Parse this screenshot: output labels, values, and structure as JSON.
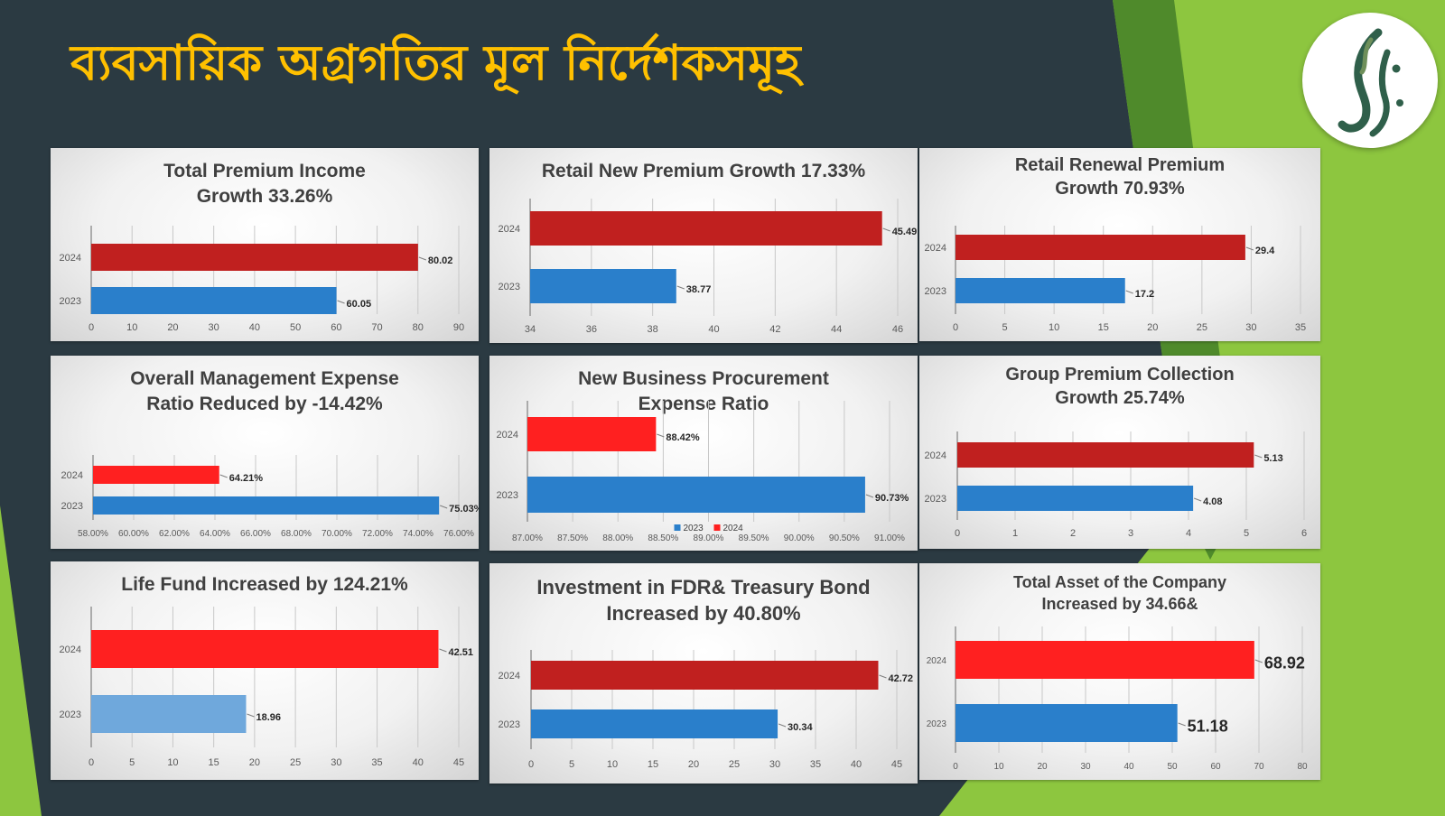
{
  "slide": {
    "title": "ব্যবসায়িক অগ্রগতির মূল নির্দেশকসমূহ"
  },
  "colors": {
    "background": "#2b3a42",
    "accent_green": "#8dc63f",
    "title": "#ffc000",
    "bar_2024": "#c0201f",
    "bar_2024_bright": "#ff2020",
    "bar_2023": "#2a7fcb",
    "bar_2023_light": "#6fa8dc"
  },
  "logo": {
    "icon": "calligraphy-logo-icon"
  },
  "chart_data": [
    {
      "type": "bar",
      "orientation": "horizontal",
      "title": "Total Premium Income\nGrowth 33.26%",
      "categories": [
        "2024",
        "2023"
      ],
      "values": [
        80.02,
        60.05
      ],
      "labels": [
        "80.02",
        "60.05"
      ],
      "xlim": [
        0,
        90
      ],
      "ticks": [
        0,
        10,
        20,
        30,
        40,
        50,
        60,
        70,
        80,
        90
      ],
      "tick_labels": [
        "0",
        "10",
        "20",
        "30",
        "40",
        "50",
        "60",
        "70",
        "80",
        "90"
      ],
      "grid": true,
      "colors": [
        "#c0201f",
        "#2a7fcb"
      ]
    },
    {
      "type": "bar",
      "orientation": "horizontal",
      "title": "Retail New Premium Growth 17.33%",
      "categories": [
        "2024",
        "2023"
      ],
      "values": [
        45.49,
        38.77
      ],
      "labels": [
        "45.49",
        "38.77"
      ],
      "xlim": [
        34,
        46
      ],
      "ticks": [
        34,
        36,
        38,
        40,
        42,
        44,
        46
      ],
      "tick_labels": [
        "34",
        "36",
        "38",
        "40",
        "42",
        "44",
        "46"
      ],
      "grid": true,
      "colors": [
        "#c0201f",
        "#2a7fcb"
      ]
    },
    {
      "type": "bar",
      "orientation": "horizontal",
      "title": "Retail Renewal Premium\nGrowth 70.93%",
      "categories": [
        "2024",
        "2023"
      ],
      "values": [
        29.4,
        17.2
      ],
      "labels": [
        "29.4",
        "17.2"
      ],
      "xlim": [
        0,
        35
      ],
      "ticks": [
        0,
        5,
        10,
        15,
        20,
        25,
        30,
        35
      ],
      "tick_labels": [
        "0",
        "5",
        "10",
        "15",
        "20",
        "25",
        "30",
        "35"
      ],
      "grid": true,
      "colors": [
        "#c0201f",
        "#2a7fcb"
      ]
    },
    {
      "type": "bar",
      "orientation": "horizontal",
      "title": "Overall Management Expense\nRatio Reduced by -14.42%",
      "categories": [
        "2024",
        "2023"
      ],
      "values": [
        64.21,
        75.03
      ],
      "labels": [
        "64.21%",
        "75.03%"
      ],
      "xlim": [
        58,
        76
      ],
      "ticks": [
        58,
        60,
        62,
        64,
        66,
        68,
        70,
        72,
        74,
        76
      ],
      "tick_labels": [
        "58.00%",
        "60.00%",
        "62.00%",
        "64.00%",
        "66.00%",
        "68.00%",
        "70.00%",
        "72.00%",
        "74.00%",
        "76.00%"
      ],
      "grid": true,
      "colors": [
        "#ff2020",
        "#2a7fcb"
      ]
    },
    {
      "type": "bar",
      "orientation": "horizontal",
      "title": "New Business Procurement\nExpense Ratio",
      "categories": [
        "2024",
        "2023"
      ],
      "values": [
        88.42,
        90.73
      ],
      "labels": [
        "88.42%",
        "90.73%"
      ],
      "xlim": [
        87,
        91
      ],
      "ticks": [
        87,
        87.5,
        88,
        88.5,
        89,
        89.5,
        90,
        90.5,
        91
      ],
      "tick_labels": [
        "87.00%",
        "87.50%",
        "88.00%",
        "88.50%",
        "89.00%",
        "89.50%",
        "90.00%",
        "90.50%",
        "91.00%"
      ],
      "grid": true,
      "colors": [
        "#ff2020",
        "#2a7fcb"
      ],
      "legend": {
        "position": "bottom",
        "entries": [
          {
            "name": "2023",
            "color": "#2a7fcb"
          },
          {
            "name": "2024",
            "color": "#ff2020"
          }
        ]
      }
    },
    {
      "type": "bar",
      "orientation": "horizontal",
      "title": "Group Premium Collection\nGrowth 25.74%",
      "categories": [
        "2024",
        "2023"
      ],
      "values": [
        5.13,
        4.08
      ],
      "labels": [
        "5.13",
        "4.08"
      ],
      "xlim": [
        0,
        6
      ],
      "ticks": [
        0,
        1,
        2,
        3,
        4,
        5,
        6
      ],
      "tick_labels": [
        "0",
        "1",
        "2",
        "3",
        "4",
        "5",
        "6"
      ],
      "grid": true,
      "colors": [
        "#c0201f",
        "#2a7fcb"
      ]
    },
    {
      "type": "bar",
      "orientation": "horizontal",
      "title": "Life Fund Increased by 124.21%",
      "categories": [
        "2024",
        "2023"
      ],
      "values": [
        42.51,
        18.96
      ],
      "labels": [
        "42.51",
        "18.96"
      ],
      "xlim": [
        0,
        45
      ],
      "ticks": [
        0,
        5,
        10,
        15,
        20,
        25,
        30,
        35,
        40,
        45
      ],
      "tick_labels": [
        "0",
        "5",
        "10",
        "15",
        "20",
        "25",
        "30",
        "35",
        "40",
        "45"
      ],
      "grid": true,
      "colors": [
        "#ff2020",
        "#6fa8dc"
      ]
    },
    {
      "type": "bar",
      "orientation": "horizontal",
      "title": "Investment in FDR& Treasury Bond\nIncreased by 40.80%",
      "categories": [
        "2024",
        "2023"
      ],
      "values": [
        42.72,
        30.34
      ],
      "labels": [
        "42.72",
        "30.34"
      ],
      "xlim": [
        0,
        45
      ],
      "ticks": [
        0,
        5,
        10,
        15,
        20,
        25,
        30,
        35,
        40,
        45
      ],
      "tick_labels": [
        "0",
        "5",
        "10",
        "15",
        "20",
        "25",
        "30",
        "35",
        "40",
        "45"
      ],
      "grid": true,
      "colors": [
        "#c0201f",
        "#2a7fcb"
      ]
    },
    {
      "type": "bar",
      "orientation": "horizontal",
      "title": "Total Asset of the Company\nIncreased by 34.66&",
      "categories": [
        "2024",
        "2023"
      ],
      "values": [
        68.92,
        51.18
      ],
      "labels": [
        "68.92",
        "51.18"
      ],
      "xlim": [
        0,
        80
      ],
      "ticks": [
        0,
        10,
        20,
        30,
        40,
        50,
        60,
        70,
        80
      ],
      "tick_labels": [
        "0",
        "10",
        "20",
        "30",
        "40",
        "50",
        "60",
        "70",
        "80"
      ],
      "grid": true,
      "colors": [
        "#ff2020",
        "#2a7fcb"
      ]
    }
  ]
}
